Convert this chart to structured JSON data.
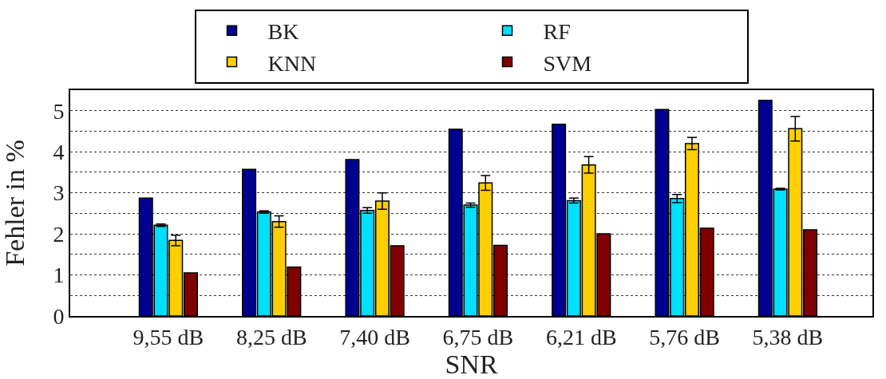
{
  "chart_data": {
    "type": "bar",
    "xlabel": "SNR",
    "ylabel": "Fehler in %",
    "categories": [
      "9,55 dB",
      "8,25 dB",
      "7,40 dB",
      "6,75 dB",
      "6,21 dB",
      "5,76 dB",
      "5,38 dB"
    ],
    "series": [
      {
        "name": "BK",
        "color": "#000090",
        "values": [
          2.87,
          3.57,
          3.81,
          4.55,
          4.67,
          5.03,
          5.25
        ]
      },
      {
        "name": "RF",
        "color": "#00dfff",
        "values": [
          2.21,
          2.53,
          2.57,
          2.7,
          2.81,
          2.86,
          3.09
        ],
        "errors": [
          0.03,
          0.03,
          0.07,
          0.05,
          0.06,
          0.1,
          0.02
        ]
      },
      {
        "name": "KNN",
        "color": "#ffcf00",
        "values": [
          1.84,
          2.3,
          2.8,
          3.24,
          3.68,
          4.2,
          4.56
        ],
        "errors": [
          0.13,
          0.14,
          0.2,
          0.18,
          0.2,
          0.15,
          0.3
        ]
      },
      {
        "name": "SVM",
        "color": "#800000",
        "values": [
          1.05,
          1.19,
          1.71,
          1.72,
          2.0,
          2.14,
          2.1
        ]
      }
    ],
    "ylim": [
      0,
      5.5
    ],
    "yticks": [
      0,
      {
        "value": 0.5,
        "label": null
      },
      1,
      {
        "value": 1.5,
        "label": null
      },
      2,
      {
        "value": 2.5,
        "label": null
      },
      3,
      {
        "value": 3.5,
        "label": null
      },
      4,
      {
        "value": 4.5,
        "label": null
      },
      5
    ],
    "grid": "y",
    "line_style": "dotted",
    "legend": "top"
  }
}
